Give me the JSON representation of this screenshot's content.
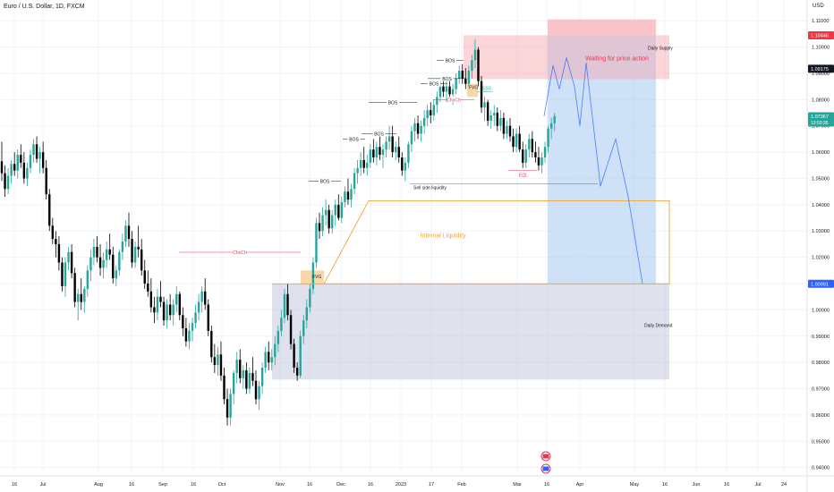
{
  "header": {
    "title": "Euro / U.S. Dollar, 1D, FXCM",
    "currency": "USD"
  },
  "colors": {
    "up": "#26a69a",
    "down": "#000000",
    "grid": "#f0f3fa",
    "supply": "#f5a3ab",
    "demand": "#b8bdd6",
    "target": "#a8c8ee",
    "orange": "#f0a33a",
    "red": "#e53950",
    "blue": "#2962ff"
  },
  "price_labels": [
    {
      "value": 1.10446,
      "text": "1.10446",
      "bg": "#f23645",
      "fg": "#ffffff"
    },
    {
      "value": 1.09175,
      "text": "1.09175",
      "bg": "#131722",
      "fg": "#ffffff"
    },
    {
      "value": 1.07367,
      "text": "1.07367",
      "bg": "#26a69a",
      "fg": "#ffffff",
      "sub": "13:50:35"
    },
    {
      "value": 1.00991,
      "text": "1.00991",
      "bg": "#2962ff",
      "fg": "#ffffff"
    }
  ],
  "annotations": {
    "daily_supply": "Daily Supply",
    "daily_demand": "Daily Demand",
    "waiting": "Waiting for price action",
    "internal_liquidity": "Internal Liquidity",
    "sell_side_liquidity": "Sell side liquidity",
    "fvg": "FVG",
    "choch": "ChoCh",
    "bos": "BOS",
    "sss": "SSS",
    "eql": "EQL"
  },
  "event_icons": [
    "us-flag-icon",
    "eu-us-flag-icon"
  ],
  "chart_data": {
    "type": "candlestick",
    "symbol": "Euro / U.S. Dollar",
    "interval": "1D",
    "y_axis": {
      "ylim": [
        0.9375,
        1.1145
      ],
      "ticks": [
        "0.94000",
        "0.95000",
        "0.96000",
        "0.97000",
        "0.98000",
        "0.99000",
        "1.00000",
        "1.01000",
        "1.02000",
        "1.03000",
        "1.04000",
        "1.05000",
        "1.06000",
        "1.07000",
        "1.08000",
        "1.09000",
        "1.10000",
        "1.11000"
      ]
    },
    "x_axis": {
      "ticks": [
        "16",
        "Jul",
        "Aug",
        "16",
        "Sep",
        "16",
        "Oct",
        "Nov",
        "16",
        "Dec",
        "16",
        "2023",
        "17",
        "Feb",
        "Mar",
        "16",
        "Apr",
        "May",
        "16",
        "Jun",
        "16",
        "Jul",
        "24"
      ]
    },
    "candles": [
      [
        1.0565,
        1.064,
        1.049,
        1.052
      ],
      [
        1.052,
        1.055,
        1.043,
        1.046
      ],
      [
        1.046,
        1.054,
        1.044,
        1.051
      ],
      [
        1.051,
        1.057,
        1.048,
        1.0555
      ],
      [
        1.0555,
        1.06,
        1.051,
        1.053
      ],
      [
        1.053,
        1.061,
        1.05,
        1.059
      ],
      [
        1.059,
        1.063,
        1.054,
        1.056
      ],
      [
        1.056,
        1.06,
        1.048,
        1.05
      ],
      [
        1.05,
        1.056,
        1.047,
        1.054
      ],
      [
        1.054,
        1.061,
        1.052,
        1.059
      ],
      [
        1.059,
        1.065,
        1.056,
        1.063
      ],
      [
        1.063,
        1.066,
        1.056,
        1.0575
      ],
      [
        1.0575,
        1.062,
        1.052,
        1.06
      ],
      [
        1.06,
        1.064,
        1.052,
        1.054
      ],
      [
        1.054,
        1.057,
        1.042,
        1.044
      ],
      [
        1.044,
        1.046,
        1.03,
        1.032
      ],
      [
        1.032,
        1.035,
        1.025,
        1.027
      ],
      [
        1.027,
        1.03,
        1.02,
        1.025
      ],
      [
        1.025,
        1.028,
        1.015,
        1.018
      ],
      [
        1.018,
        1.02,
        1.007,
        1.009
      ],
      [
        1.009,
        1.02,
        1.005,
        1.018
      ],
      [
        1.018,
        1.024,
        1.015,
        1.022
      ],
      [
        1.022,
        1.025,
        1.012,
        1.014
      ],
      [
        1.014,
        1.016,
        1.001,
        1.003
      ],
      [
        1.003,
        1.008,
        0.996,
        1.006
      ],
      [
        1.006,
        1.012,
        1.0,
        1.003
      ],
      [
        1.003,
        1.009,
        0.999,
        1.008
      ],
      [
        1.008,
        1.017,
        1.005,
        1.015
      ],
      [
        1.015,
        1.023,
        1.011,
        1.02
      ],
      [
        1.02,
        1.027,
        1.017,
        1.024
      ],
      [
        1.024,
        1.028,
        1.018,
        1.02
      ],
      [
        1.02,
        1.025,
        1.013,
        1.016
      ],
      [
        1.016,
        1.022,
        1.012,
        1.019
      ],
      [
        1.019,
        1.026,
        1.016,
        1.023
      ],
      [
        1.023,
        1.029,
        1.019,
        1.021
      ],
      [
        1.021,
        1.024,
        1.01,
        1.012
      ],
      [
        1.012,
        1.017,
        1.009,
        1.015
      ],
      [
        1.015,
        1.023,
        1.013,
        1.022
      ],
      [
        1.022,
        1.029,
        1.019,
        1.026
      ],
      [
        1.026,
        1.034,
        1.024,
        1.032
      ],
      [
        1.032,
        1.037,
        1.024,
        1.027
      ],
      [
        1.027,
        1.03,
        1.016,
        1.018
      ],
      [
        1.018,
        1.026,
        1.016,
        1.024
      ],
      [
        1.024,
        1.032,
        1.02,
        1.023
      ],
      [
        1.023,
        1.027,
        1.013,
        1.015
      ],
      [
        1.015,
        1.019,
        1.008,
        1.01
      ],
      [
        1.01,
        1.015,
        1.005,
        1.007
      ],
      [
        1.007,
        1.012,
        0.999,
        1.001
      ],
      [
        1.001,
        1.005,
        0.995,
        0.999
      ],
      [
        0.999,
        1.008,
        0.996,
        1.005
      ],
      [
        1.005,
        1.011,
        1.001,
        1.003
      ],
      [
        1.003,
        1.005,
        0.994,
        0.996
      ],
      [
        0.996,
        1.004,
        0.993,
        1.002
      ],
      [
        1.002,
        1.006,
        0.996,
        0.998
      ],
      [
        0.998,
        1.004,
        0.994,
        1.002
      ],
      [
        1.002,
        1.009,
        0.999,
        1.006
      ],
      [
        1.006,
        1.007,
        0.996,
        0.998
      ],
      [
        0.998,
        1.001,
        0.99,
        0.993
      ],
      [
        0.993,
        0.997,
        0.986,
        0.988
      ],
      [
        0.988,
        0.995,
        0.985,
        0.992
      ],
      [
        0.992,
        0.997,
        0.988,
        0.995
      ],
      [
        0.995,
        1.002,
        0.993,
        0.999
      ],
      [
        0.999,
        1.006,
        0.996,
        1.003
      ],
      [
        1.003,
        1.009,
        0.999,
        1.007
      ],
      [
        1.007,
        1.012,
        1.0,
        1.002
      ],
      [
        1.002,
        1.004,
        0.99,
        0.992
      ],
      [
        0.992,
        0.994,
        0.98,
        0.982
      ],
      [
        0.982,
        0.987,
        0.976,
        0.979
      ],
      [
        0.979,
        0.986,
        0.975,
        0.983
      ],
      [
        0.983,
        0.988,
        0.973,
        0.975
      ],
      [
        0.975,
        0.978,
        0.964,
        0.966
      ],
      [
        0.966,
        0.97,
        0.956,
        0.959
      ],
      [
        0.959,
        0.97,
        0.956,
        0.968
      ],
      [
        0.968,
        0.977,
        0.964,
        0.976
      ],
      [
        0.976,
        0.984,
        0.972,
        0.981
      ],
      [
        0.981,
        0.985,
        0.972,
        0.974
      ],
      [
        0.974,
        0.979,
        0.97,
        0.977
      ],
      [
        0.977,
        0.98,
        0.968,
        0.97
      ],
      [
        0.97,
        0.978,
        0.968,
        0.976
      ],
      [
        0.976,
        0.982,
        0.971,
        0.973
      ],
      [
        0.973,
        0.977,
        0.964,
        0.966
      ],
      [
        0.966,
        0.973,
        0.962,
        0.971
      ],
      [
        0.971,
        0.98,
        0.968,
        0.978
      ],
      [
        0.978,
        0.986,
        0.976,
        0.984
      ],
      [
        0.984,
        0.988,
        0.977,
        0.98
      ],
      [
        0.98,
        0.985,
        0.977,
        0.982
      ],
      [
        0.982,
        0.99,
        0.979,
        0.987
      ],
      [
        0.987,
        0.994,
        0.984,
        0.992
      ],
      [
        0.992,
        1.0,
        0.99,
        0.997
      ],
      [
        0.997,
        1.008,
        0.995,
        1.006
      ],
      [
        1.006,
        1.01,
        0.996,
        0.998
      ],
      [
        0.998,
        1.0,
        0.985,
        0.987
      ],
      [
        0.987,
        0.989,
        0.976,
        0.978
      ],
      [
        0.978,
        0.98,
        0.973,
        0.975
      ],
      [
        0.975,
        0.992,
        0.974,
        0.99
      ],
      [
        0.99,
        0.998,
        0.987,
        0.996
      ],
      [
        0.996,
        1.004,
        0.993,
        1.001
      ],
      [
        1.001,
        1.01,
        0.999,
        1.008
      ],
      [
        1.008,
        1.02,
        1.006,
        1.018
      ],
      [
        1.018,
        1.035,
        1.016,
        1.033
      ],
      [
        1.033,
        1.037,
        1.027,
        1.03
      ],
      [
        1.03,
        1.039,
        1.028,
        1.036
      ],
      [
        1.036,
        1.042,
        1.032,
        1.038
      ],
      [
        1.038,
        1.04,
        1.029,
        1.031
      ],
      [
        1.031,
        1.038,
        1.029,
        1.036
      ],
      [
        1.036,
        1.042,
        1.032,
        1.04
      ],
      [
        1.04,
        1.044,
        1.034,
        1.035
      ],
      [
        1.035,
        1.043,
        1.033,
        1.041
      ],
      [
        1.041,
        1.047,
        1.039,
        1.045
      ],
      [
        1.045,
        1.05,
        1.04,
        1.042
      ],
      [
        1.042,
        1.048,
        1.039,
        1.046
      ],
      [
        1.046,
        1.054,
        1.044,
        1.052
      ],
      [
        1.052,
        1.057,
        1.048,
        1.054
      ],
      [
        1.054,
        1.06,
        1.051,
        1.057
      ],
      [
        1.057,
        1.062,
        1.052,
        1.054
      ],
      [
        1.054,
        1.059,
        1.051,
        1.056
      ],
      [
        1.056,
        1.063,
        1.054,
        1.061
      ],
      [
        1.061,
        1.065,
        1.056,
        1.058
      ],
      [
        1.058,
        1.064,
        1.055,
        1.062
      ],
      [
        1.062,
        1.067,
        1.057,
        1.059
      ],
      [
        1.059,
        1.063,
        1.054,
        1.061
      ],
      [
        1.061,
        1.066,
        1.058,
        1.064
      ],
      [
        1.064,
        1.07,
        1.061,
        1.066
      ],
      [
        1.066,
        1.07,
        1.058,
        1.06
      ],
      [
        1.06,
        1.064,
        1.057,
        1.062
      ],
      [
        1.062,
        1.066,
        1.056,
        1.058
      ],
      [
        1.058,
        1.06,
        1.051,
        1.053
      ],
      [
        1.053,
        1.058,
        1.049,
        1.056
      ],
      [
        1.056,
        1.064,
        1.054,
        1.063
      ],
      [
        1.063,
        1.07,
        1.06,
        1.068
      ],
      [
        1.068,
        1.073,
        1.064,
        1.071
      ],
      [
        1.071,
        1.074,
        1.065,
        1.067
      ],
      [
        1.067,
        1.072,
        1.064,
        1.07
      ],
      [
        1.07,
        1.076,
        1.067,
        1.073
      ],
      [
        1.073,
        1.078,
        1.07,
        1.076
      ],
      [
        1.076,
        1.079,
        1.071,
        1.074
      ],
      [
        1.074,
        1.08,
        1.072,
        1.078
      ],
      [
        1.078,
        1.083,
        1.075,
        1.081
      ],
      [
        1.081,
        1.087,
        1.079,
        1.085
      ],
      [
        1.085,
        1.089,
        1.081,
        1.083
      ],
      [
        1.083,
        1.087,
        1.079,
        1.085
      ],
      [
        1.085,
        1.088,
        1.08,
        1.082
      ],
      [
        1.082,
        1.086,
        1.078,
        1.084
      ],
      [
        1.084,
        1.09,
        1.082,
        1.088
      ],
      [
        1.088,
        1.093,
        1.086,
        1.091
      ],
      [
        1.091,
        1.0935,
        1.086,
        1.088
      ],
      [
        1.088,
        1.092,
        1.084,
        1.086
      ],
      [
        1.086,
        1.093,
        1.085,
        1.091
      ],
      [
        1.091,
        1.097,
        1.088,
        1.095
      ],
      [
        1.095,
        1.103,
        1.092,
        1.099
      ],
      [
        1.099,
        1.1,
        1.085,
        1.087
      ],
      [
        1.087,
        1.089,
        1.075,
        1.077
      ],
      [
        1.077,
        1.081,
        1.072,
        1.079
      ],
      [
        1.079,
        1.08,
        1.07,
        1.072
      ],
      [
        1.072,
        1.076,
        1.069,
        1.074
      ],
      [
        1.074,
        1.078,
        1.07,
        1.075
      ],
      [
        1.075,
        1.077,
        1.068,
        1.07
      ],
      [
        1.07,
        1.076,
        1.068,
        1.073
      ],
      [
        1.073,
        1.075,
        1.065,
        1.067
      ],
      [
        1.067,
        1.072,
        1.065,
        1.07
      ],
      [
        1.07,
        1.073,
        1.064,
        1.066
      ],
      [
        1.066,
        1.069,
        1.06,
        1.062
      ],
      [
        1.062,
        1.069,
        1.06,
        1.067
      ],
      [
        1.067,
        1.07,
        1.06,
        1.061
      ],
      [
        1.061,
        1.064,
        1.054,
        1.056
      ],
      [
        1.056,
        1.063,
        1.054,
        1.061
      ],
      [
        1.061,
        1.067,
        1.058,
        1.065
      ],
      [
        1.065,
        1.068,
        1.058,
        1.06
      ],
      [
        1.06,
        1.064,
        1.056,
        1.058
      ],
      [
        1.058,
        1.062,
        1.053,
        1.055
      ],
      [
        1.055,
        1.06,
        1.052,
        1.058
      ],
      [
        1.058,
        1.064,
        1.056,
        1.062
      ],
      [
        1.062,
        1.07,
        1.06,
        1.069
      ],
      [
        1.069,
        1.073,
        1.065,
        1.071
      ],
      [
        1.071,
        1.075,
        1.068,
        1.0737
      ]
    ],
    "projection": [
      [
        1.0737,
        1.076
      ],
      [
        1.093,
        1.09
      ],
      [
        1.084,
        1.098
      ],
      [
        1.085,
        1.07
      ],
      [
        1.062,
        1.048
      ],
      [
        1.065,
        1.053
      ],
      [
        1.045,
        1.0099
      ]
    ],
    "zones": {
      "daily_supply": [
        1.0878,
        1.1045
      ],
      "daily_demand": [
        0.9735,
        1.0099
      ],
      "internal_liquidity": [
        1.0099,
        1.0415
      ],
      "target_box": [
        1.0099,
        1.1045
      ]
    }
  }
}
